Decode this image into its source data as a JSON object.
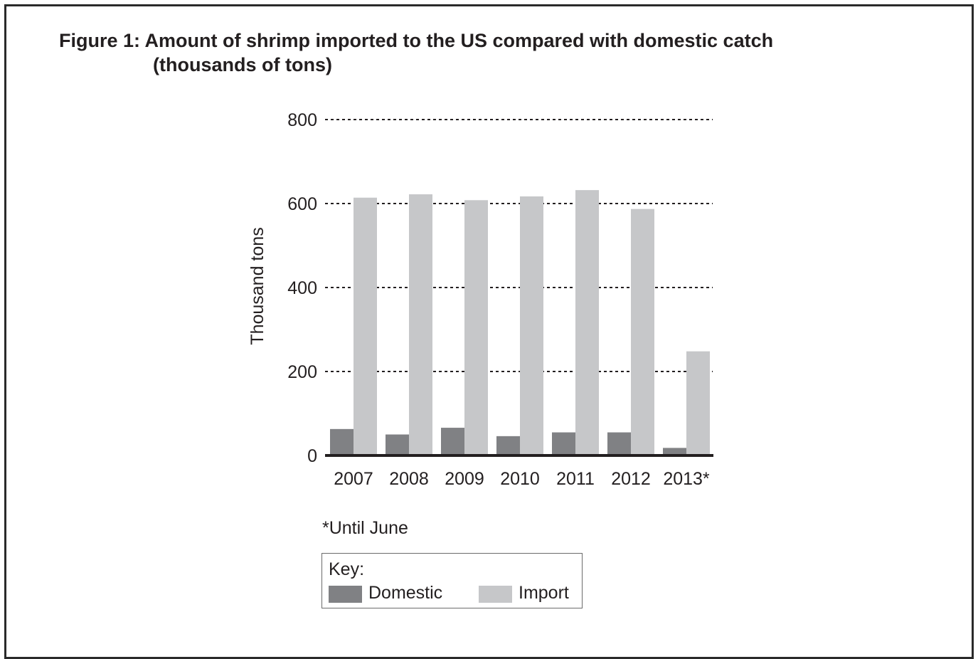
{
  "figure": {
    "title_line1": "Figure 1: Amount of shrimp imported to the US compared with domestic catch",
    "title_line2": "(thousands of tons)",
    "footnote": "*Until June",
    "key": {
      "label": "Key:",
      "domestic_label": "Domestic",
      "import_label": "Import"
    }
  },
  "chart_data": {
    "type": "bar",
    "title": "Figure 1: Amount of shrimp imported to the US compared with domestic catch (thousands of tons)",
    "ylabel": "Thousand tons",
    "xlabel": "",
    "categories": [
      "2007",
      "2008",
      "2009",
      "2010",
      "2011",
      "2012",
      "2013*"
    ],
    "series": [
      {
        "name": "Domestic",
        "color": "#808184",
        "values": [
          63,
          50,
          66,
          46,
          55,
          55,
          18
        ]
      },
      {
        "name": "Import",
        "color": "#c6c7c9",
        "values": [
          614,
          622,
          608,
          617,
          632,
          587,
          248
        ]
      }
    ],
    "yticks": [
      0,
      200,
      400,
      600,
      800
    ],
    "ylim": [
      0,
      800
    ],
    "grid": "dashed horizontal",
    "legend": "bottom"
  }
}
